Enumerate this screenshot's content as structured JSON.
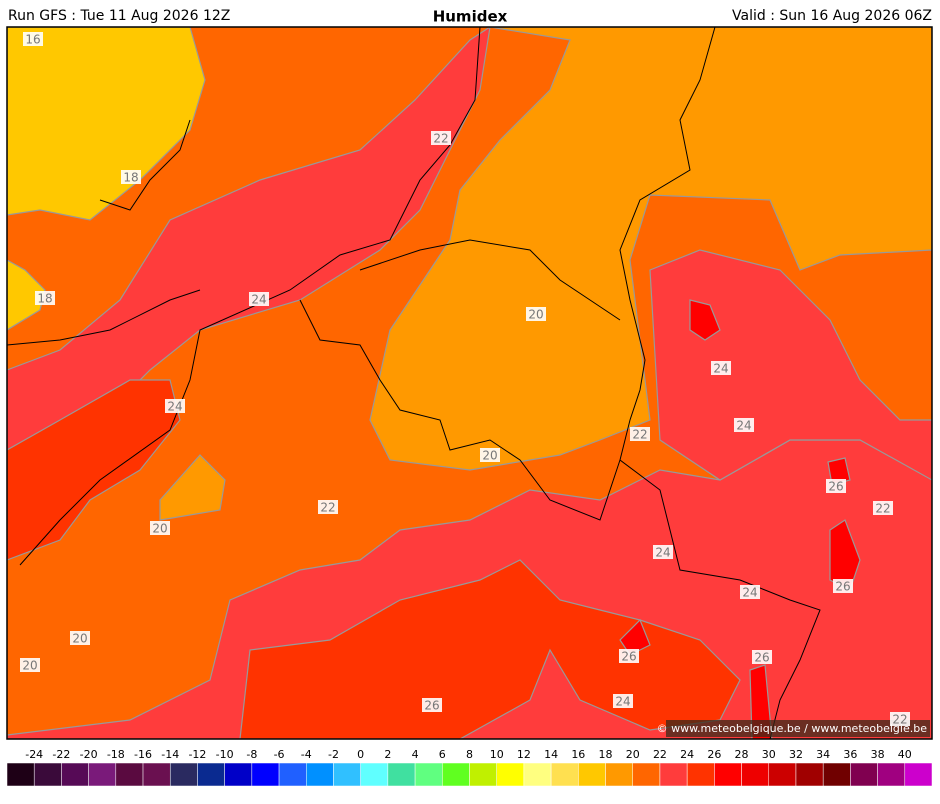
{
  "header": {
    "run": "Run GFS : Tue 11 Aug 2026 12Z",
    "title": "Humidex",
    "valid": "Valid : Sun 16 Aug 2026 06Z"
  },
  "contour_labels": [
    16,
    18,
    18,
    22,
    24,
    20,
    24,
    24,
    24,
    22,
    20,
    26,
    22,
    22,
    20,
    24,
    26,
    24,
    20,
    26,
    26,
    20,
    24,
    26,
    22
  ],
  "credit": "© www.meteobelgique.be / www.meteobelgie.be",
  "colorbar": {
    "labels": [
      -24,
      -22,
      -20,
      -18,
      -16,
      -14,
      -12,
      -10,
      -8,
      -6,
      -4,
      -2,
      0,
      2,
      4,
      6,
      8,
      10,
      12,
      14,
      16,
      18,
      20,
      22,
      24,
      26,
      28,
      30,
      32,
      34,
      36,
      38,
      40
    ],
    "colors": [
      "#1e0016",
      "#3a0a3a",
      "#560a56",
      "#7a1a7a",
      "#5a0a40",
      "#6a1050",
      "#2a2a60",
      "#0a2a90",
      "#0000c8",
      "#0000ff",
      "#2060ff",
      "#0090ff",
      "#30c0ff",
      "#60ffff",
      "#40e0a0",
      "#60ff80",
      "#60ff20",
      "#c0f000",
      "#ffff00",
      "#ffff80",
      "#ffe050",
      "#ffc800",
      "#ff9900",
      "#ff6600",
      "#ff3c3c",
      "#ff3300",
      "#ff0000",
      "#ee0000",
      "#cc0000",
      "#a00000",
      "#700000",
      "#800050",
      "#a00080",
      "#cc00cc"
    ]
  }
}
